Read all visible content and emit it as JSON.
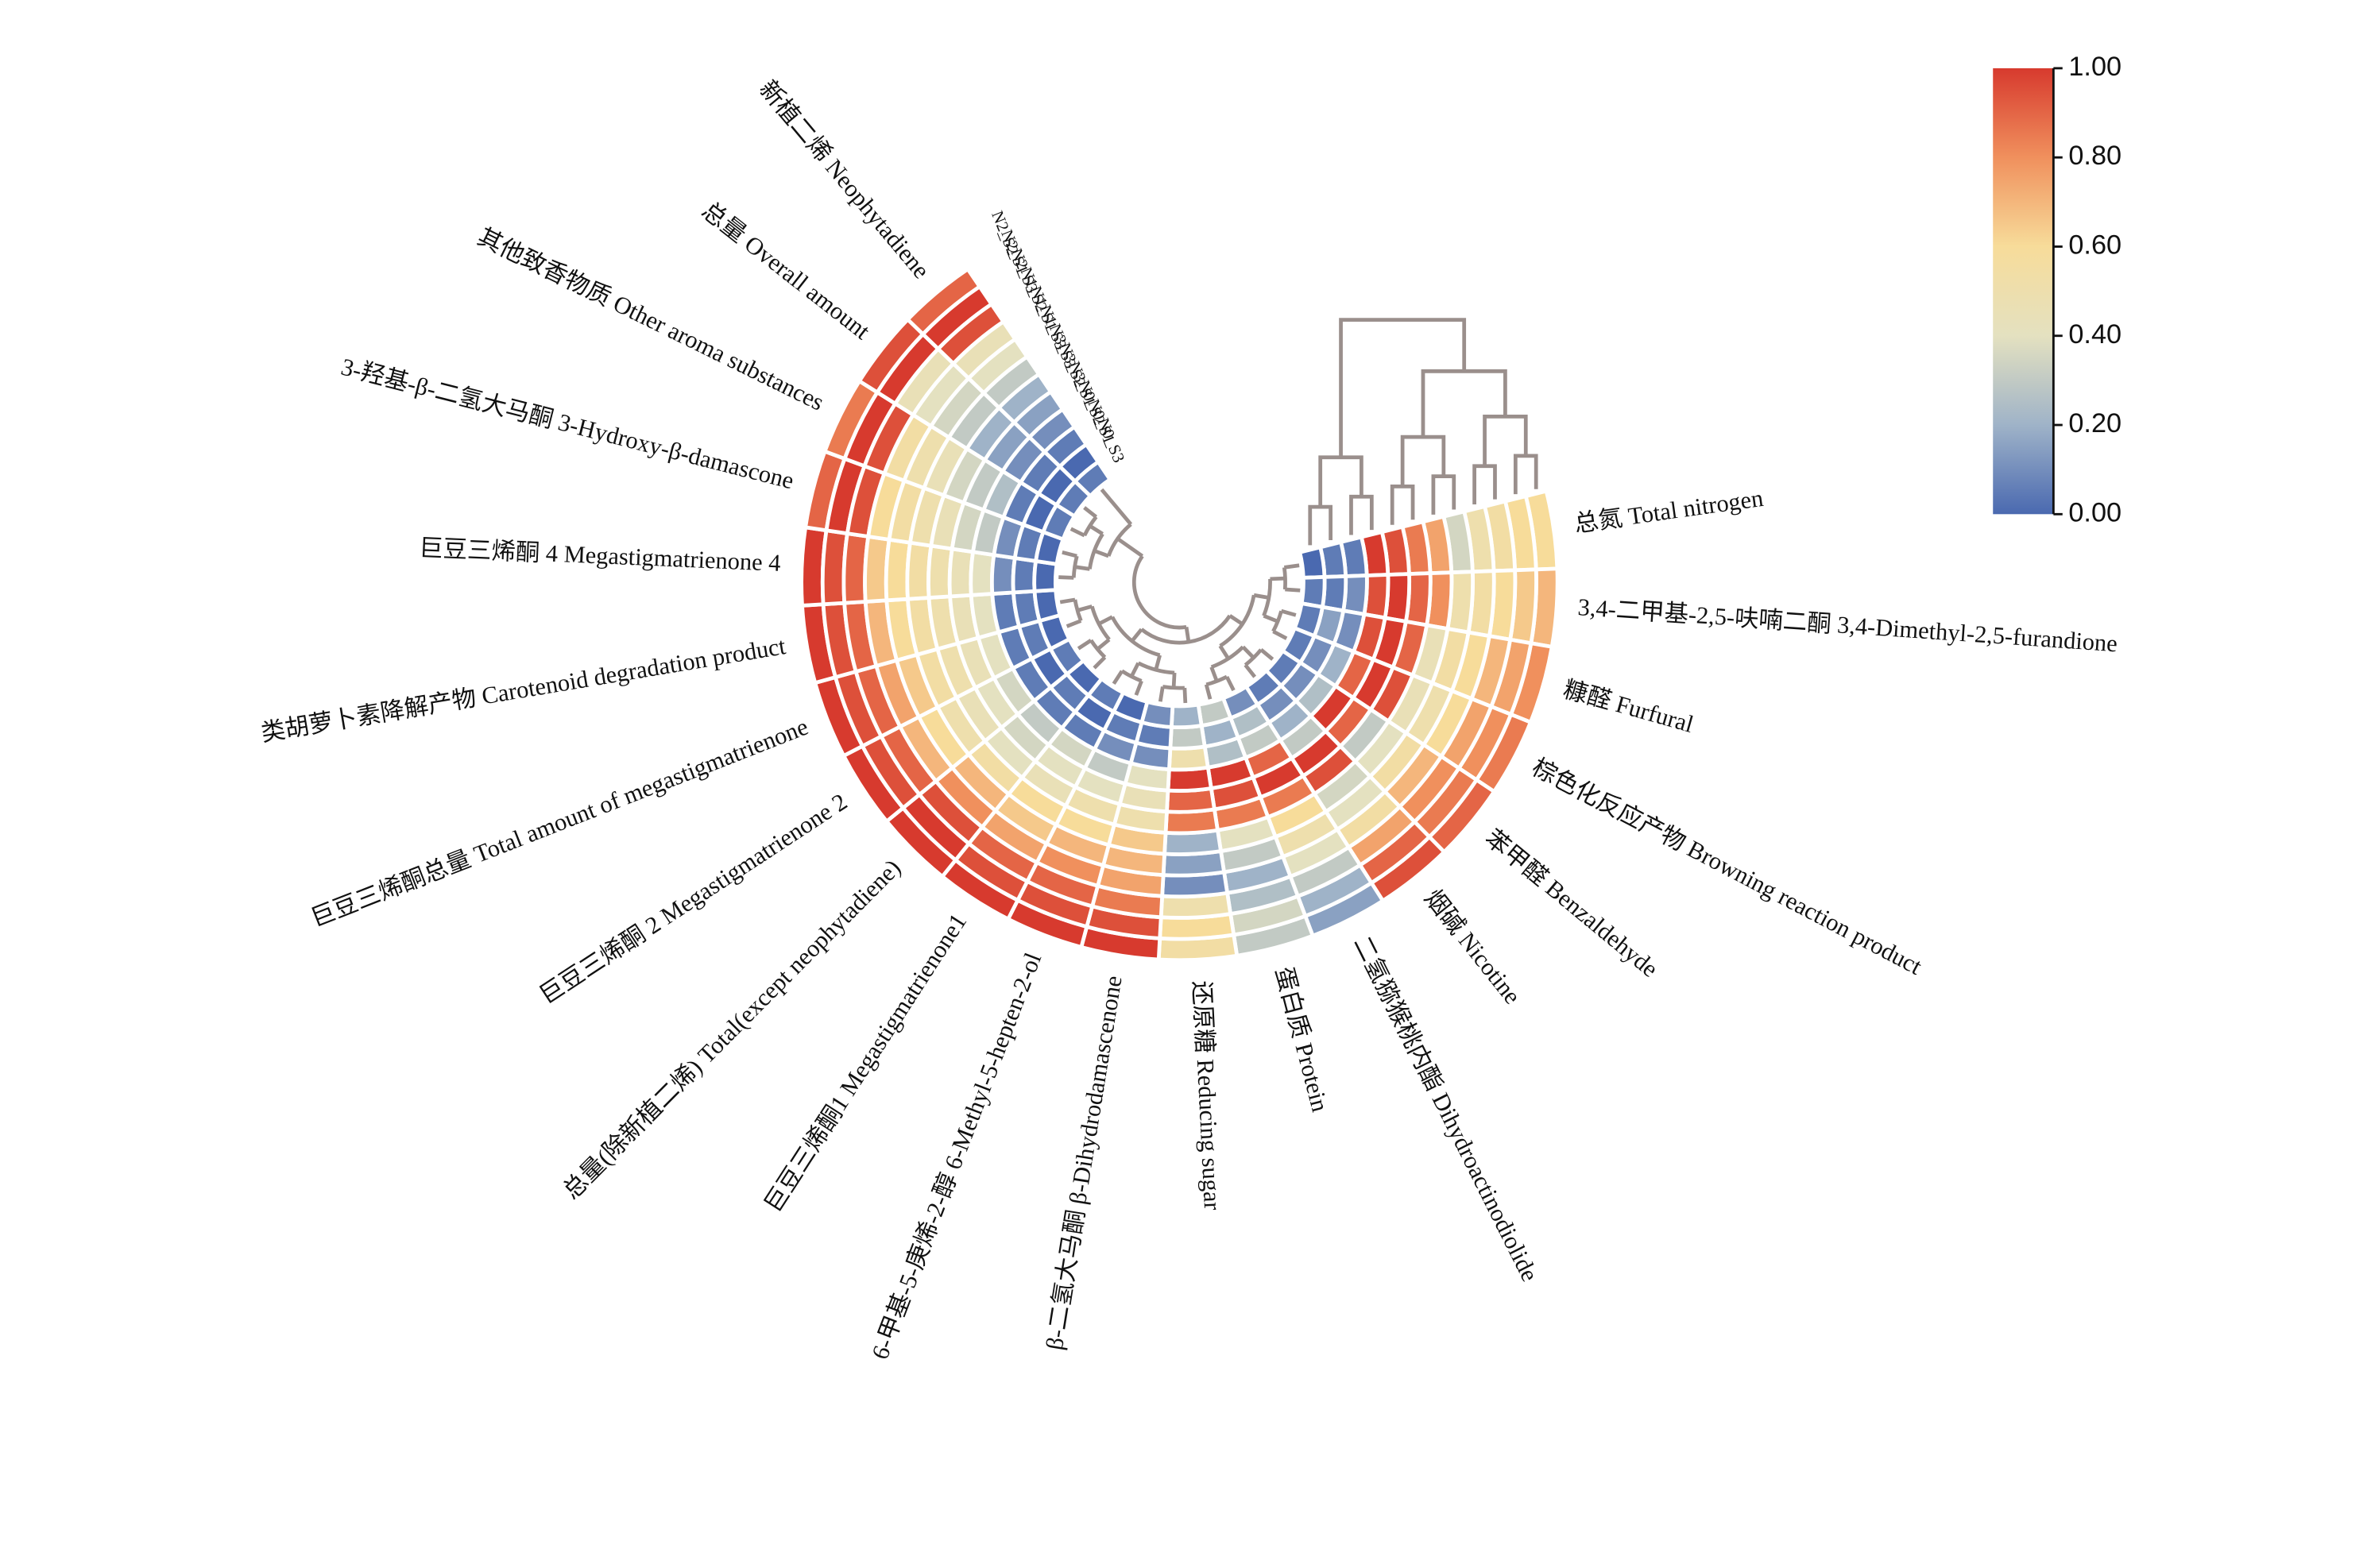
{
  "chart_data": {
    "type": "circular-heatmap",
    "categories": [
      "总氮 Total nitrogen",
      "3,4-二甲基-2,5-呋喃二酮 3,4-Dimethyl-2,5-furandione",
      "糠醛 Furfural",
      "棕色化反应产物 Browning reaction product",
      "苯甲醛 Benzaldehyde",
      "烟碱 Nicotine",
      "二氢猕猴桃内酯 Dihydroactinodiolide",
      "蛋白质 Protein",
      "还原糖 Reducing sugar",
      "β-二氢大马酮 β-Dihydrodamascenone",
      "6-甲基-5-庚烯-2-醇 6-Methyl-5-hepten-2-ol",
      "巨豆三烯酮1 Megastigmatrienone1",
      "总量(除新植二烯) Total(except neophytadiene)",
      "巨豆三烯酮 2 Megastigmatrienone 2",
      "巨豆三烯酮总量 Total amount of megastigmatrienone",
      "类胡萝卜素降解产物 Carotenoid degradation product",
      "巨豆三烯酮 4 Megastigmatrienone 4",
      "3-羟基-β-二氢大马酮 3-Hydroxy-β-damascone",
      "其他致香物质 Other aroma substances",
      "总量 Overall amount",
      "新植二烯 Neophytadiene"
    ],
    "series": [
      {
        "name": "N2_S2",
        "values": [
          0.6,
          0.7,
          0.8,
          0.85,
          0.9,
          0.95,
          0.15,
          0.3,
          0.55,
          1,
          1,
          1,
          1,
          1,
          1,
          1,
          1,
          0.9,
          0.85,
          0.95,
          0.9
        ]
      },
      {
        "name": "N2_S1",
        "values": [
          0.6,
          0.65,
          0.75,
          0.8,
          0.85,
          0.9,
          0.2,
          0.35,
          0.6,
          0.95,
          0.95,
          0.95,
          1,
          0.95,
          0.95,
          0.95,
          0.95,
          1,
          1,
          1,
          1
        ]
      },
      {
        "name": "N2_S3",
        "values": [
          0.55,
          0.6,
          0.7,
          0.75,
          0.8,
          0.75,
          0.3,
          0.25,
          0.5,
          0.85,
          0.9,
          0.9,
          0.95,
          0.9,
          0.9,
          0.9,
          0.9,
          0.95,
          0.95,
          0.45,
          0.95
        ]
      },
      {
        "name": "N1_S2",
        "values": [
          0.5,
          0.55,
          0.6,
          0.6,
          0.7,
          0.55,
          0.4,
          0.2,
          0.1,
          0.75,
          0.8,
          0.75,
          0.8,
          0.7,
          0.75,
          0.7,
          0.65,
          0.6,
          0.55,
          0.4,
          0.45
        ]
      },
      {
        "name": "N1_S1",
        "values": [
          0.35,
          0.5,
          0.55,
          0.5,
          0.55,
          0.4,
          0.5,
          0.3,
          0.15,
          0.7,
          0.7,
          0.65,
          0.7,
          0.6,
          0.65,
          0.6,
          0.6,
          0.55,
          0.5,
          0.35,
          0.4
        ]
      },
      {
        "name": "N1_S3",
        "values": [
          0.75,
          0.8,
          0.45,
          0.45,
          0.4,
          0.35,
          0.6,
          0.4,
          0.2,
          0.65,
          0.6,
          0.6,
          0.55,
          0.5,
          0.55,
          0.55,
          0.55,
          0.5,
          0.45,
          0.3,
          0.3
        ]
      },
      {
        "name": "N3_S3",
        "values": [
          0.85,
          0.9,
          0.9,
          0.95,
          0.3,
          0.95,
          0.85,
          0.85,
          0.85,
          0.5,
          0.5,
          0.45,
          0.4,
          0.45,
          0.5,
          0.5,
          0.5,
          0.45,
          0.35,
          0.2,
          0.2
        ]
      },
      {
        "name": "N3_S2",
        "values": [
          0.95,
          1,
          1,
          1,
          0.9,
          1,
          1,
          0.95,
          0.9,
          0.45,
          0.4,
          0.4,
          0.35,
          0.4,
          0.45,
          0.45,
          0.45,
          0.35,
          0.3,
          0.15,
          0.15
        ]
      },
      {
        "name": "N3_S1",
        "values": [
          1,
          0.95,
          0.95,
          0.9,
          1,
          0.3,
          0.9,
          1,
          1,
          0.4,
          0.3,
          0.35,
          0.3,
          0.35,
          0.4,
          0.4,
          0.4,
          0.3,
          0.25,
          0.1,
          0.1
        ]
      },
      {
        "name": "N0_S2",
        "values": [
          0.05,
          0.1,
          0.1,
          0.2,
          0.25,
          0.2,
          0.3,
          0.25,
          0.5,
          0.1,
          0.1,
          0.05,
          0.05,
          0.05,
          0.05,
          0.05,
          0.1,
          0.1,
          0.05,
          0.05,
          0.05
        ]
      },
      {
        "name": "N0_S1",
        "values": [
          0.05,
          0.05,
          0.15,
          0.1,
          0.1,
          0.1,
          0.25,
          0.2,
          0.3,
          0.05,
          0.05,
          0,
          0.05,
          0,
          0.05,
          0.05,
          0.05,
          0.05,
          0,
          0,
          0
        ]
      },
      {
        "name": "N0_S3",
        "values": [
          0,
          0.05,
          0.05,
          0.05,
          0.05,
          0.05,
          0.1,
          0.3,
          0.2,
          0.1,
          0,
          0.05,
          0,
          0.05,
          0,
          0,
          0,
          0,
          0.05,
          0.05,
          0.05
        ]
      }
    ],
    "colormap": [
      "#4a69b0",
      "#9fb3c8",
      "#e4e1c0",
      "#f7dc9a",
      "#f0905d",
      "#d73a2e"
    ],
    "clim": [
      0,
      1
    ],
    "cticks": [
      {
        "value": 0,
        "label": "0.00"
      },
      {
        "value": 0.2,
        "label": "0.20"
      },
      {
        "value": 0.4,
        "label": "0.40"
      },
      {
        "value": 0.6,
        "label": "0.60"
      },
      {
        "value": 0.8,
        "label": "0.80"
      },
      {
        "value": 1,
        "label": "1.00"
      }
    ]
  }
}
